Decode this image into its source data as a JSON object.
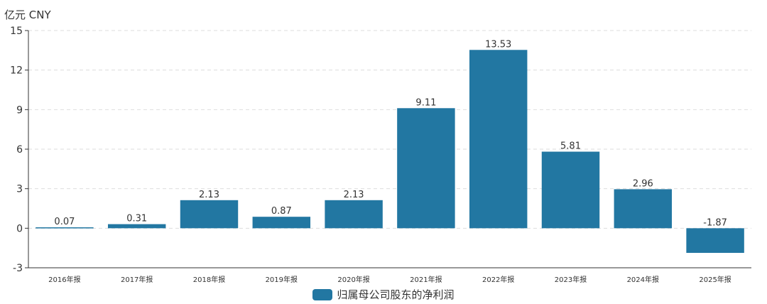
{
  "chart_data": {
    "type": "bar",
    "unit_label": "亿元  CNY",
    "categories": [
      "2016年报",
      "2017年报",
      "2018年报",
      "2019年报",
      "2020年报",
      "2021年报",
      "2022年报",
      "2023年报",
      "2024年报",
      "2025年报"
    ],
    "series": [
      {
        "name": "归属母公司股东的净利润",
        "values": [
          0.07,
          0.31,
          2.13,
          0.87,
          2.13,
          9.11,
          13.53,
          5.81,
          2.96,
          -1.87
        ],
        "value_labels": [
          "0.07",
          "0.31",
          "2.13",
          "0.87",
          "2.13",
          "9.11",
          "13.53",
          "5.81",
          "2.96",
          "-1.87"
        ]
      }
    ],
    "yticks": [
      "-3",
      "0",
      "3",
      "6",
      "9",
      "12",
      "15"
    ],
    "ylim": [
      -3,
      15
    ],
    "grid": true,
    "legend_position": "bottom",
    "colors": {
      "bar": "#2277a2",
      "grid": "#dddddd",
      "axis": "#333333",
      "text": "#333333"
    }
  }
}
